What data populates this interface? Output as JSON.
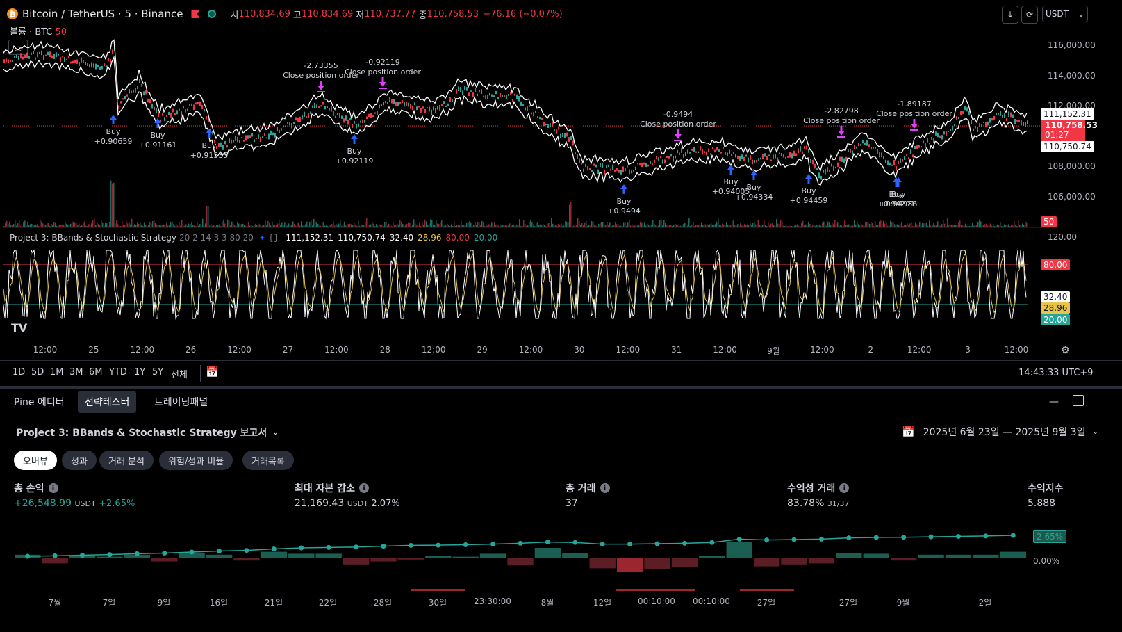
{
  "header": {
    "symbol": "Bitcoin / TetherUS · 5 · Binance",
    "open_label": "시",
    "open": "110,834.69",
    "high_label": "고",
    "high": "110,834.69",
    "low_label": "저",
    "low": "110,737.77",
    "close_label": "종",
    "close": "110,758.53",
    "change": "−76.16 (−0.07%)",
    "currency": "USDT"
  },
  "volume": {
    "label": "볼륨 · BTC",
    "value": "50"
  },
  "price_axis": [
    "116,000.00",
    "114,000.00",
    "112,000.00",
    "108,000.00",
    "106,000.00"
  ],
  "price_tags": {
    "high": "111,152.31",
    "last": "110,758.53",
    "countdown": "01:27",
    "low": "110,750.74",
    "volume": "50"
  },
  "indicator": {
    "title": "Project 3: BBands & Stochastic Strategy",
    "params": "20 2 14 3 3 80 20",
    "v1": "111,152.31",
    "v2": "110,750.74",
    "v3": "32.40",
    "v4": "28.96",
    "v5": "80.00",
    "v6": "20.00",
    "axis_top": "120.00",
    "tag_upper": "80.00",
    "tag_k": "32.40",
    "tag_d": "28.96",
    "tag_lower": "20.00",
    "colors": {
      "k": "#ffffff",
      "d": "#e6c547",
      "upper": "#f23645",
      "lower": "#26a69a"
    }
  },
  "annotations": {
    "buys": [
      {
        "label": "Buy",
        "value": "+0.90659"
      },
      {
        "label": "Buy",
        "value": "+0.91161"
      },
      {
        "label": "Buy",
        "value": "+0.91535"
      },
      {
        "label": "Buy",
        "value": "+0.92119"
      },
      {
        "label": "Buy",
        "value": "+0.9494"
      },
      {
        "label": "Buy",
        "value": "+0.94005"
      },
      {
        "label": "Buy",
        "value": "+0.94334"
      },
      {
        "label": "Buy",
        "value": "+0.94459"
      },
      {
        "label": "Buy",
        "value": "+0.94201"
      },
      {
        "label": "Buy",
        "value": "+0.94986"
      }
    ],
    "closes": [
      {
        "value": "-2.73355",
        "label": "Close position order"
      },
      {
        "value": "-0.92119",
        "label": "Close position order"
      },
      {
        "value": "-0.9494",
        "label": "Close position order"
      },
      {
        "value": "-2.82798",
        "label": "Close position order"
      },
      {
        "value": "-1.89187",
        "label": "Close position order"
      }
    ]
  },
  "time_axis": [
    "12:00",
    "25",
    "12:00",
    "26",
    "12:00",
    "27",
    "12:00",
    "28",
    "12:00",
    "29",
    "12:00",
    "30",
    "12:00",
    "31",
    "12:00",
    "9월",
    "12:00",
    "2",
    "12:00",
    "3",
    "12:00"
  ],
  "ranges": [
    "1D",
    "5D",
    "1M",
    "3M",
    "6M",
    "YTD",
    "1Y",
    "5Y",
    "전체"
  ],
  "clock": "14:43:33 UTC+9",
  "panel_tabs": [
    "Pine 에디터",
    "전략테스터",
    "트레이딩패널"
  ],
  "report": {
    "title": "Project 3: BBands & Stochastic Strategy 보고서",
    "date_range": "2025년 6월 23일 — 2025년 9월 3일"
  },
  "subtabs": [
    "오버뷰",
    "성과",
    "거래 분석",
    "위험/성과 비율",
    "거래목록"
  ],
  "metrics": {
    "pnl": {
      "label": "총 손익",
      "value": "+26,548.99",
      "unit": "USDT",
      "pct": "+2.65%"
    },
    "drawdown": {
      "label": "최대 자본 감소",
      "value": "21,169.43",
      "unit": "USDT",
      "pct": "2.07%"
    },
    "trades": {
      "label": "총 거래",
      "value": "37"
    },
    "profitable": {
      "label": "수익성 거래",
      "value": "83.78%",
      "sub": "31/37"
    },
    "factor": {
      "label": "수익지수",
      "value": "5.888"
    }
  },
  "equity_axis": {
    "top_tag": "2.65%",
    "zero": "0.00%"
  },
  "equity_bars": [
    0.3,
    -0.6,
    0.2,
    0.1,
    0.3,
    -0.4,
    0.5,
    0.3,
    -0.3,
    0.6,
    0.4,
    0.4,
    -0.7,
    -0.4,
    -0.2,
    0.2,
    0.1,
    0.4,
    -0.8,
    1.0,
    0.5,
    -1.1,
    -1.5,
    -1.2,
    -1.0,
    0.2,
    1.6,
    -0.9,
    -0.7,
    -0.6,
    0.5,
    0.4,
    -0.3,
    0.3,
    0.3,
    0.3,
    0.6
  ],
  "equity_line": [
    0.0,
    0.02,
    0.05,
    0.08,
    0.12,
    0.15,
    0.2,
    0.25,
    0.28,
    0.35,
    0.4,
    0.42,
    0.44,
    0.48,
    0.52,
    0.53,
    0.55,
    0.58,
    0.62,
    0.68,
    0.66,
    0.58,
    0.58,
    0.6,
    0.62,
    0.66,
    0.82,
    0.78,
    0.8,
    0.82,
    0.88,
    0.9,
    0.91,
    0.93,
    0.95,
    0.97,
    1.0
  ],
  "bottom_axis": [
    "7월",
    "7일",
    "9일",
    "16일",
    "21일",
    "22일",
    "28일",
    "30일",
    "23:30:00",
    "8월",
    "12일",
    "00:10:00",
    "00:10:00",
    "27일",
    "27일",
    "9월",
    "2일"
  ]
}
